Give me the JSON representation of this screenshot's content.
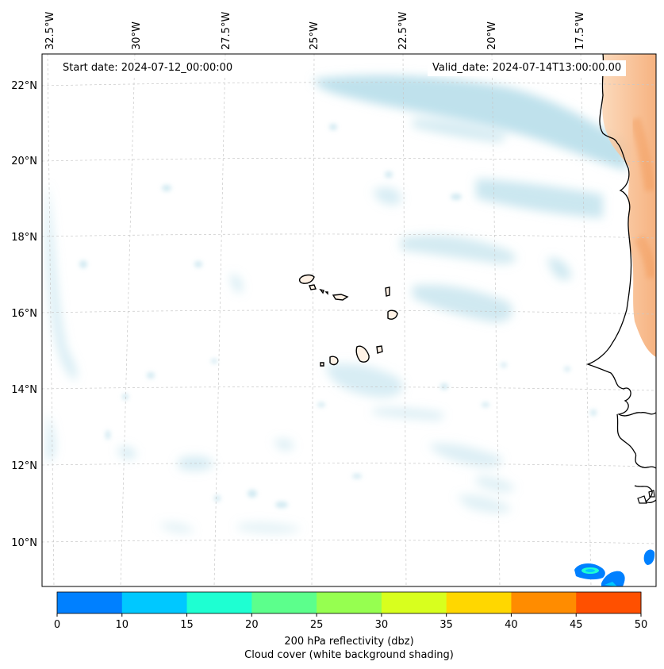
{
  "map": {
    "start_label": "Start date: 2024-07-12_00:00:00",
    "valid_label": "Valid_date: 2024-07-14T13:00:00.00",
    "longitude_labels": [
      "32.5°W",
      "30°W",
      "27.5°W",
      "25°W",
      "22.5°W",
      "20°W",
      "17.5°W"
    ],
    "latitude_labels": [
      "22°N",
      "20°N",
      "18°N",
      "16°N",
      "14°N",
      "12°N",
      "10°N"
    ]
  },
  "colorbar": {
    "ticks": [
      "0",
      "10",
      "15",
      "20",
      "25",
      "30",
      "35",
      "40",
      "45",
      "50"
    ],
    "colors": [
      "#0080ff",
      "#00c8ff",
      "#1effd2",
      "#5cff8c",
      "#96ff50",
      "#d8ff1e",
      "#ffd700",
      "#ff8c00",
      "#ff5000"
    ],
    "label_line1": "200 hPa reflectivity (dbz)",
    "label_line2": "Cloud cover (white background shading)"
  },
  "colors": {
    "cloud": "#a9d7e6",
    "land": "#f7b27a",
    "coast": "#000000"
  }
}
